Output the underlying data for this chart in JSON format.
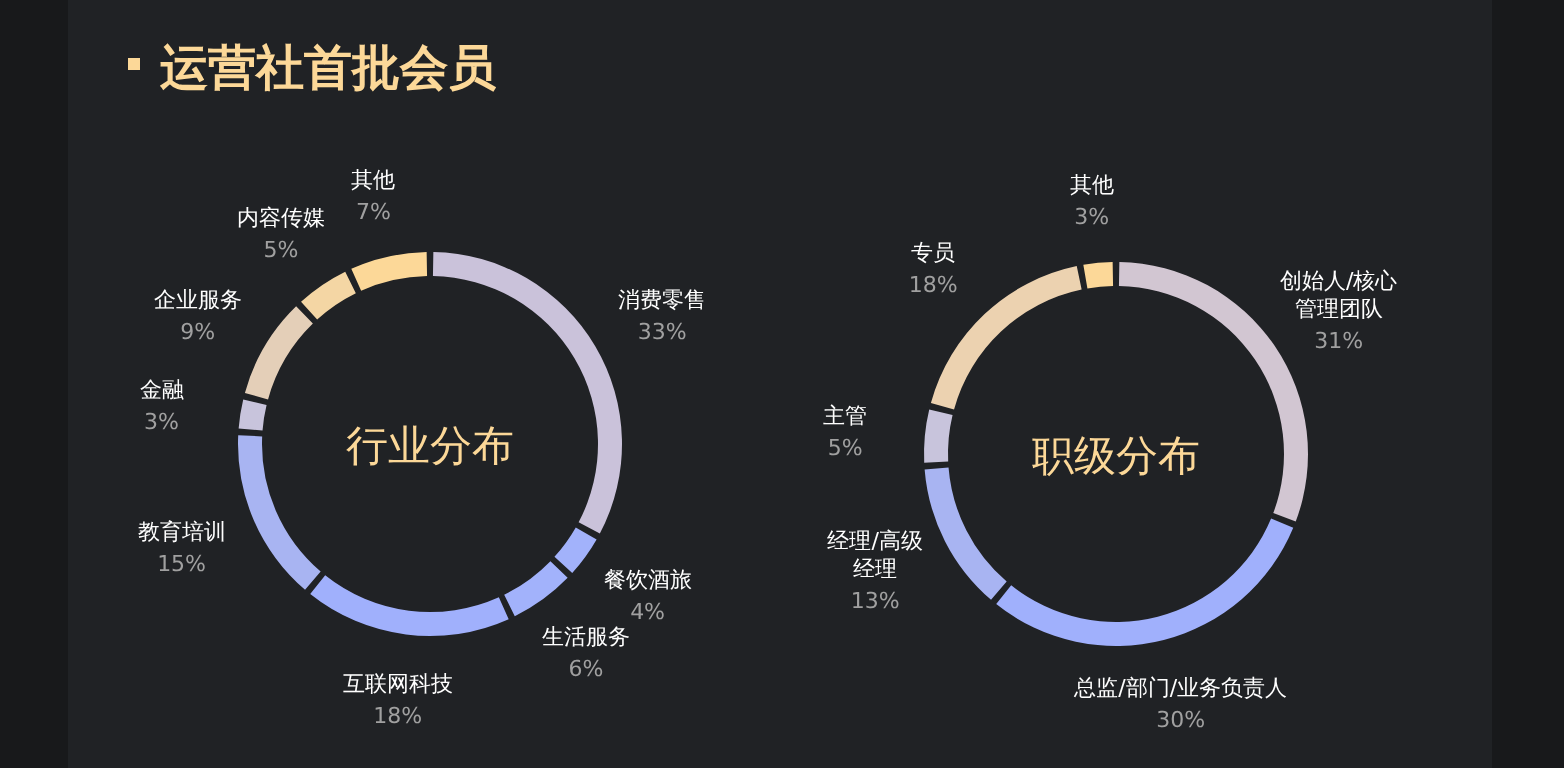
{
  "chart_data": [
    {
      "type": "other",
      "title": "运营社首批会员"
    },
    {
      "type": "donut",
      "title": "行业分布",
      "categories": [
        "消费零售",
        "餐饮酒旅",
        "生活服务",
        "互联网科技",
        "教育培训",
        "金融",
        "企业服务",
        "内容传媒",
        "其他"
      ],
      "values": [
        33,
        4,
        6,
        18,
        15,
        3,
        9,
        5,
        7
      ],
      "value_labels": [
        "33%",
        "4%",
        "6%",
        "18%",
        "15%",
        "3%",
        "9%",
        "5%",
        "7%"
      ],
      "colors": [
        "#cac2da",
        "#a2b2fb",
        "#a2b2fb",
        "#a0b0fc",
        "#a8b4f2",
        "#c8c4dc",
        "#e4cfb8",
        "#f4d6a4",
        "#fcd898"
      ]
    },
    {
      "type": "donut",
      "title": "职级分布",
      "categories": [
        "创始人/核心管理团队",
        "总监/部门/业务负责人",
        "经理/高级经理",
        "主管",
        "专员",
        "其他"
      ],
      "values": [
        31,
        30,
        13,
        5,
        18,
        3
      ],
      "value_labels": [
        "31%",
        "30%",
        "13%",
        "5%",
        "18%",
        "3%"
      ],
      "colors": [
        "#d2c6d2",
        "#a0b0fc",
        "#a8b4f2",
        "#c8c4dc",
        "#ecd2b0",
        "#fcd898"
      ]
    }
  ]
}
